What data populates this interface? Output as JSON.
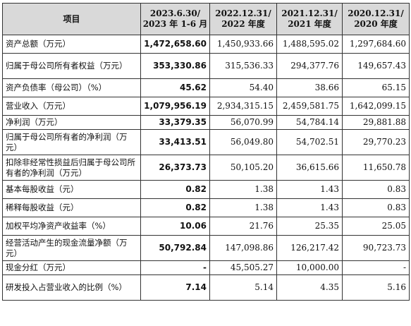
{
  "headers": {
    "item": "项目",
    "col1_line1": "2023.6.30/",
    "col1_line2": "2023 年 1-6 月",
    "col2_line1": "2022.12.31/",
    "col2_line2": "2022 年度",
    "col3_line1": "2021.12.31/",
    "col3_line2": "2021 年度",
    "col4_line1": "2020.12.31/",
    "col4_line2": "2020 年度"
  },
  "rows": [
    {
      "label": "资产总额（万元）",
      "v2023": "1,472,658.60",
      "v2022": "1,450,933.66",
      "v2021": "1,488,595.02",
      "v2020": "1,297,684.60"
    },
    {
      "label": "归属于母公司所有者权益（万元）",
      "v2023": "353,330.86",
      "v2022": "315,536.33",
      "v2021": "294,377.76",
      "v2020": "149,657.43"
    },
    {
      "label": "资产负债率（母公司）（%）",
      "v2023": "45.62",
      "v2022": "54.40",
      "v2021": "38.66",
      "v2020": "65.15"
    },
    {
      "label": "营业收入（万元）",
      "v2023": "1,079,956.19",
      "v2022": "2,934,315.15",
      "v2021": "2,459,581.75",
      "v2020": "1,642,099.15"
    },
    {
      "label": "净利润（万元）",
      "v2023": "33,379.35",
      "v2022": "56,070.99",
      "v2021": "54,784.14",
      "v2020": "29,881.88"
    },
    {
      "label": "归属于母公司所有者的净利润（万元）",
      "v2023": "33,413.51",
      "v2022": "56,049.80",
      "v2021": "54,702.51",
      "v2020": "29,770.23"
    },
    {
      "label": "扣除非经常性损益后归属于母公司所有者的净利润（万元）",
      "v2023": "26,373.73",
      "v2022": "50,105.20",
      "v2021": "36,615.66",
      "v2020": "11,650.78"
    },
    {
      "label": "基本每股收益（元）",
      "v2023": "0.82",
      "v2022": "1.38",
      "v2021": "1.43",
      "v2020": "0.83"
    },
    {
      "label": "稀释每股收益（元）",
      "v2023": "0.82",
      "v2022": "1.38",
      "v2021": "1.43",
      "v2020": "0.83"
    },
    {
      "label": "加权平均净资产收益率（%）",
      "v2023": "10.06",
      "v2022": "21.76",
      "v2021": "25.35",
      "v2020": "25.05"
    },
    {
      "label": "经营活动产生的现金流量净额（万元）",
      "v2023": "50,792.84",
      "v2022": "147,098.86",
      "v2021": "126,217.42",
      "v2020": "90,723.73"
    },
    {
      "label": "现金分红（万元）",
      "v2023": "-",
      "v2022": "45,505.27",
      "v2021": "10,000.00",
      "v2020": "-"
    },
    {
      "label": "研发投入占营业收入的比例（%）",
      "v2023": "7.14",
      "v2022": "5.14",
      "v2021": "4.35",
      "v2020": "5.16"
    }
  ]
}
